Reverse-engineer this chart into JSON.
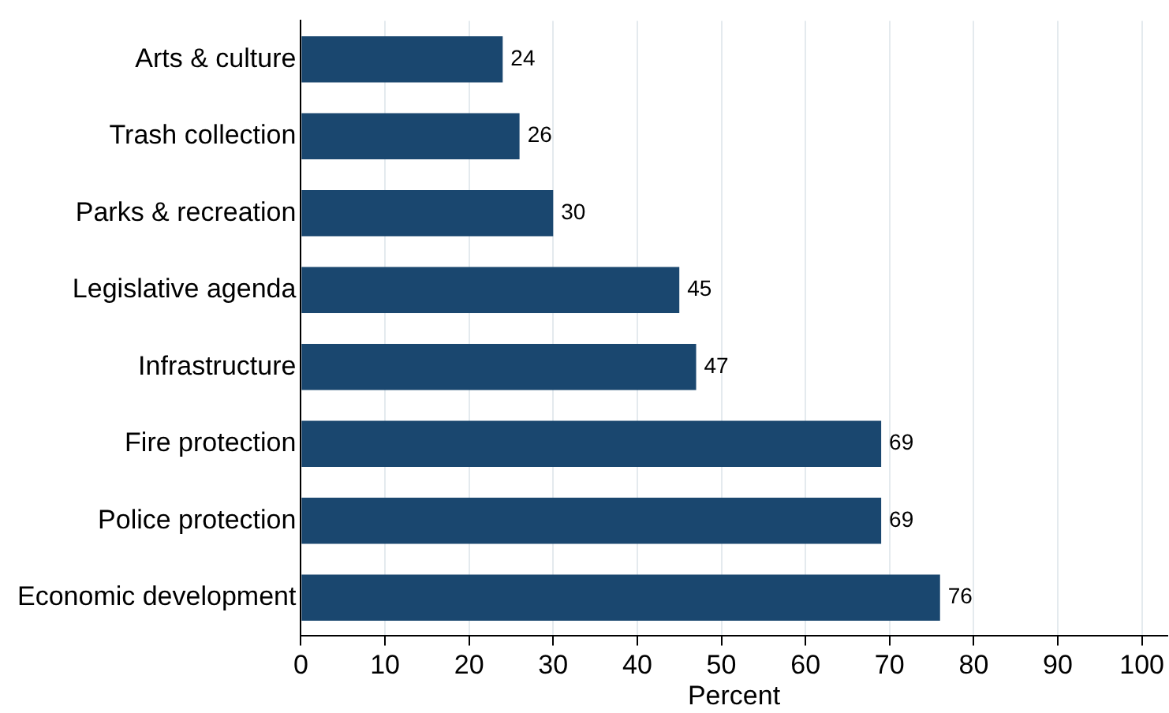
{
  "chart_data": {
    "type": "bar",
    "orientation": "horizontal",
    "xlabel": "Percent",
    "categories": [
      "Arts & culture",
      "Trash collection",
      "Parks & recreation",
      "Legislative agenda",
      "Infrastructure",
      "Fire protection",
      "Police protection",
      "Economic development"
    ],
    "values": [
      24,
      26,
      30,
      45,
      47,
      69,
      69,
      76
    ],
    "color": "#1a476f",
    "xlim": [
      0,
      103
    ],
    "xticks": [
      0,
      10,
      20,
      30,
      40,
      50,
      60,
      70,
      80,
      90,
      100
    ],
    "grid": "x",
    "data_labels": true,
    "legend": false
  }
}
